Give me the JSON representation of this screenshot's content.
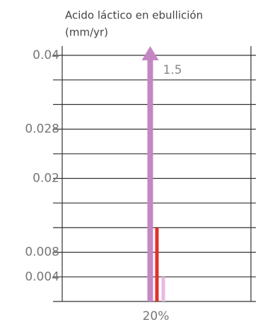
{
  "chart_data": {
    "type": "bar",
    "title": "Acido láctico en ebullición",
    "ylabel": "(mm/yr)",
    "categories": [
      "20%"
    ],
    "series": [
      {
        "color": "#c586c4",
        "values": [
          1.5
        ],
        "value_labels": [
          "1.5"
        ]
      },
      {
        "color": "#e0302c",
        "values": [
          0.012
        ]
      },
      {
        "color": "#e9b9e2",
        "values": [
          0.004
        ]
      }
    ],
    "ylim": [
      0,
      0.0415
    ],
    "yticks": [
      {
        "value": 0,
        "label": null
      },
      0.004,
      0.008,
      {
        "value": 0.012,
        "label": null
      },
      {
        "value": 0.016,
        "label": null
      },
      0.02,
      {
        "value": 0.024,
        "label": null
      },
      0.028,
      {
        "value": 0.032,
        "label": null
      },
      {
        "value": 0.036,
        "label": null
      },
      0.04
    ],
    "grid": true
  }
}
